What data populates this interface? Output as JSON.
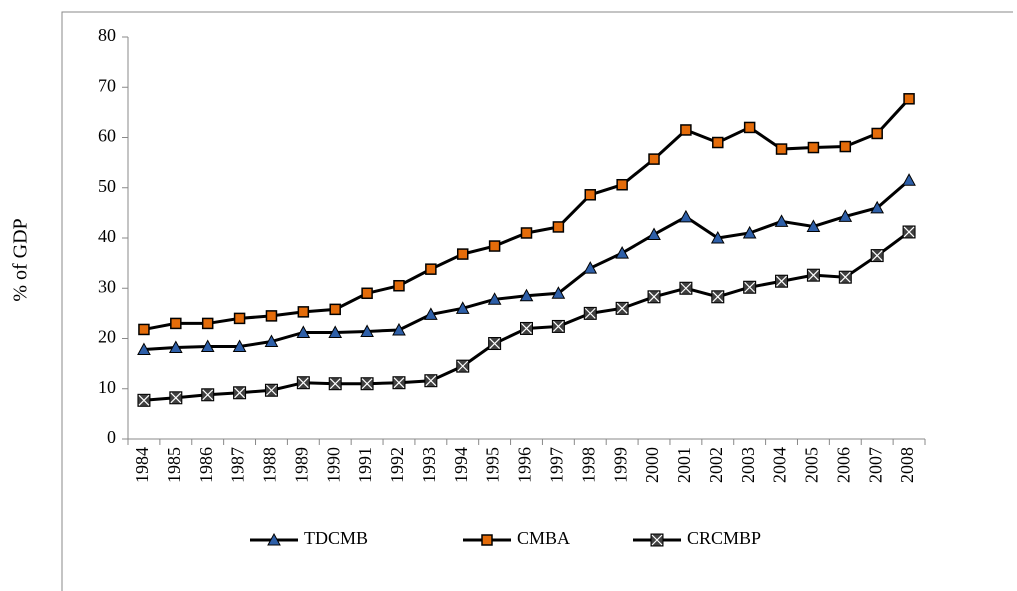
{
  "chart_data": {
    "type": "line",
    "y_label": "% of GDP",
    "categories": [
      "1984",
      "1985",
      "1986",
      "1987",
      "1988",
      "1989",
      "1990",
      "1991",
      "1992",
      "1993",
      "1994",
      "1995",
      "1996",
      "1997",
      "1998",
      "1999",
      "2000",
      "2001",
      "2002",
      "2003",
      "2004",
      "2005",
      "2006",
      "2007",
      "2008"
    ],
    "series": [
      {
        "name": "TDCMB",
        "color": "#000000",
        "marker": "triangle",
        "marker_color": "#2e5fa8",
        "values": [
          17.8,
          18.2,
          18.4,
          18.4,
          19.4,
          21.2,
          21.2,
          21.4,
          21.7,
          24.8,
          26,
          27.8,
          28.5,
          29,
          34,
          37,
          40.7,
          44.2,
          40,
          41,
          43.3,
          42.3,
          44.3,
          46,
          51.5
        ]
      },
      {
        "name": "CMBA",
        "color": "#000000",
        "marker": "square",
        "marker_color": "#e46c0a",
        "values": [
          21.8,
          23,
          23,
          24,
          24.5,
          25.3,
          25.8,
          29,
          30.5,
          33.8,
          36.8,
          38.4,
          41,
          42.2,
          48.6,
          50.6,
          55.7,
          61.5,
          59,
          62,
          57.7,
          58,
          58.2,
          60.8,
          67.7
        ]
      },
      {
        "name": "CRCMBP",
        "color": "#000000",
        "marker": "x-square",
        "marker_color": "#404040",
        "values": [
          7.7,
          8.2,
          8.8,
          9.2,
          9.7,
          11.2,
          11,
          11,
          11.2,
          11.6,
          14.5,
          19,
          22,
          22.4,
          25,
          26,
          28.3,
          30,
          28.3,
          30.2,
          31.4,
          32.6,
          32.2,
          36.5,
          41.2
        ]
      }
    ],
    "ylim": [
      0,
      80
    ],
    "yticks": [
      0,
      10,
      20,
      30,
      40,
      50,
      60,
      70,
      80
    ],
    "legend": "bottom"
  }
}
